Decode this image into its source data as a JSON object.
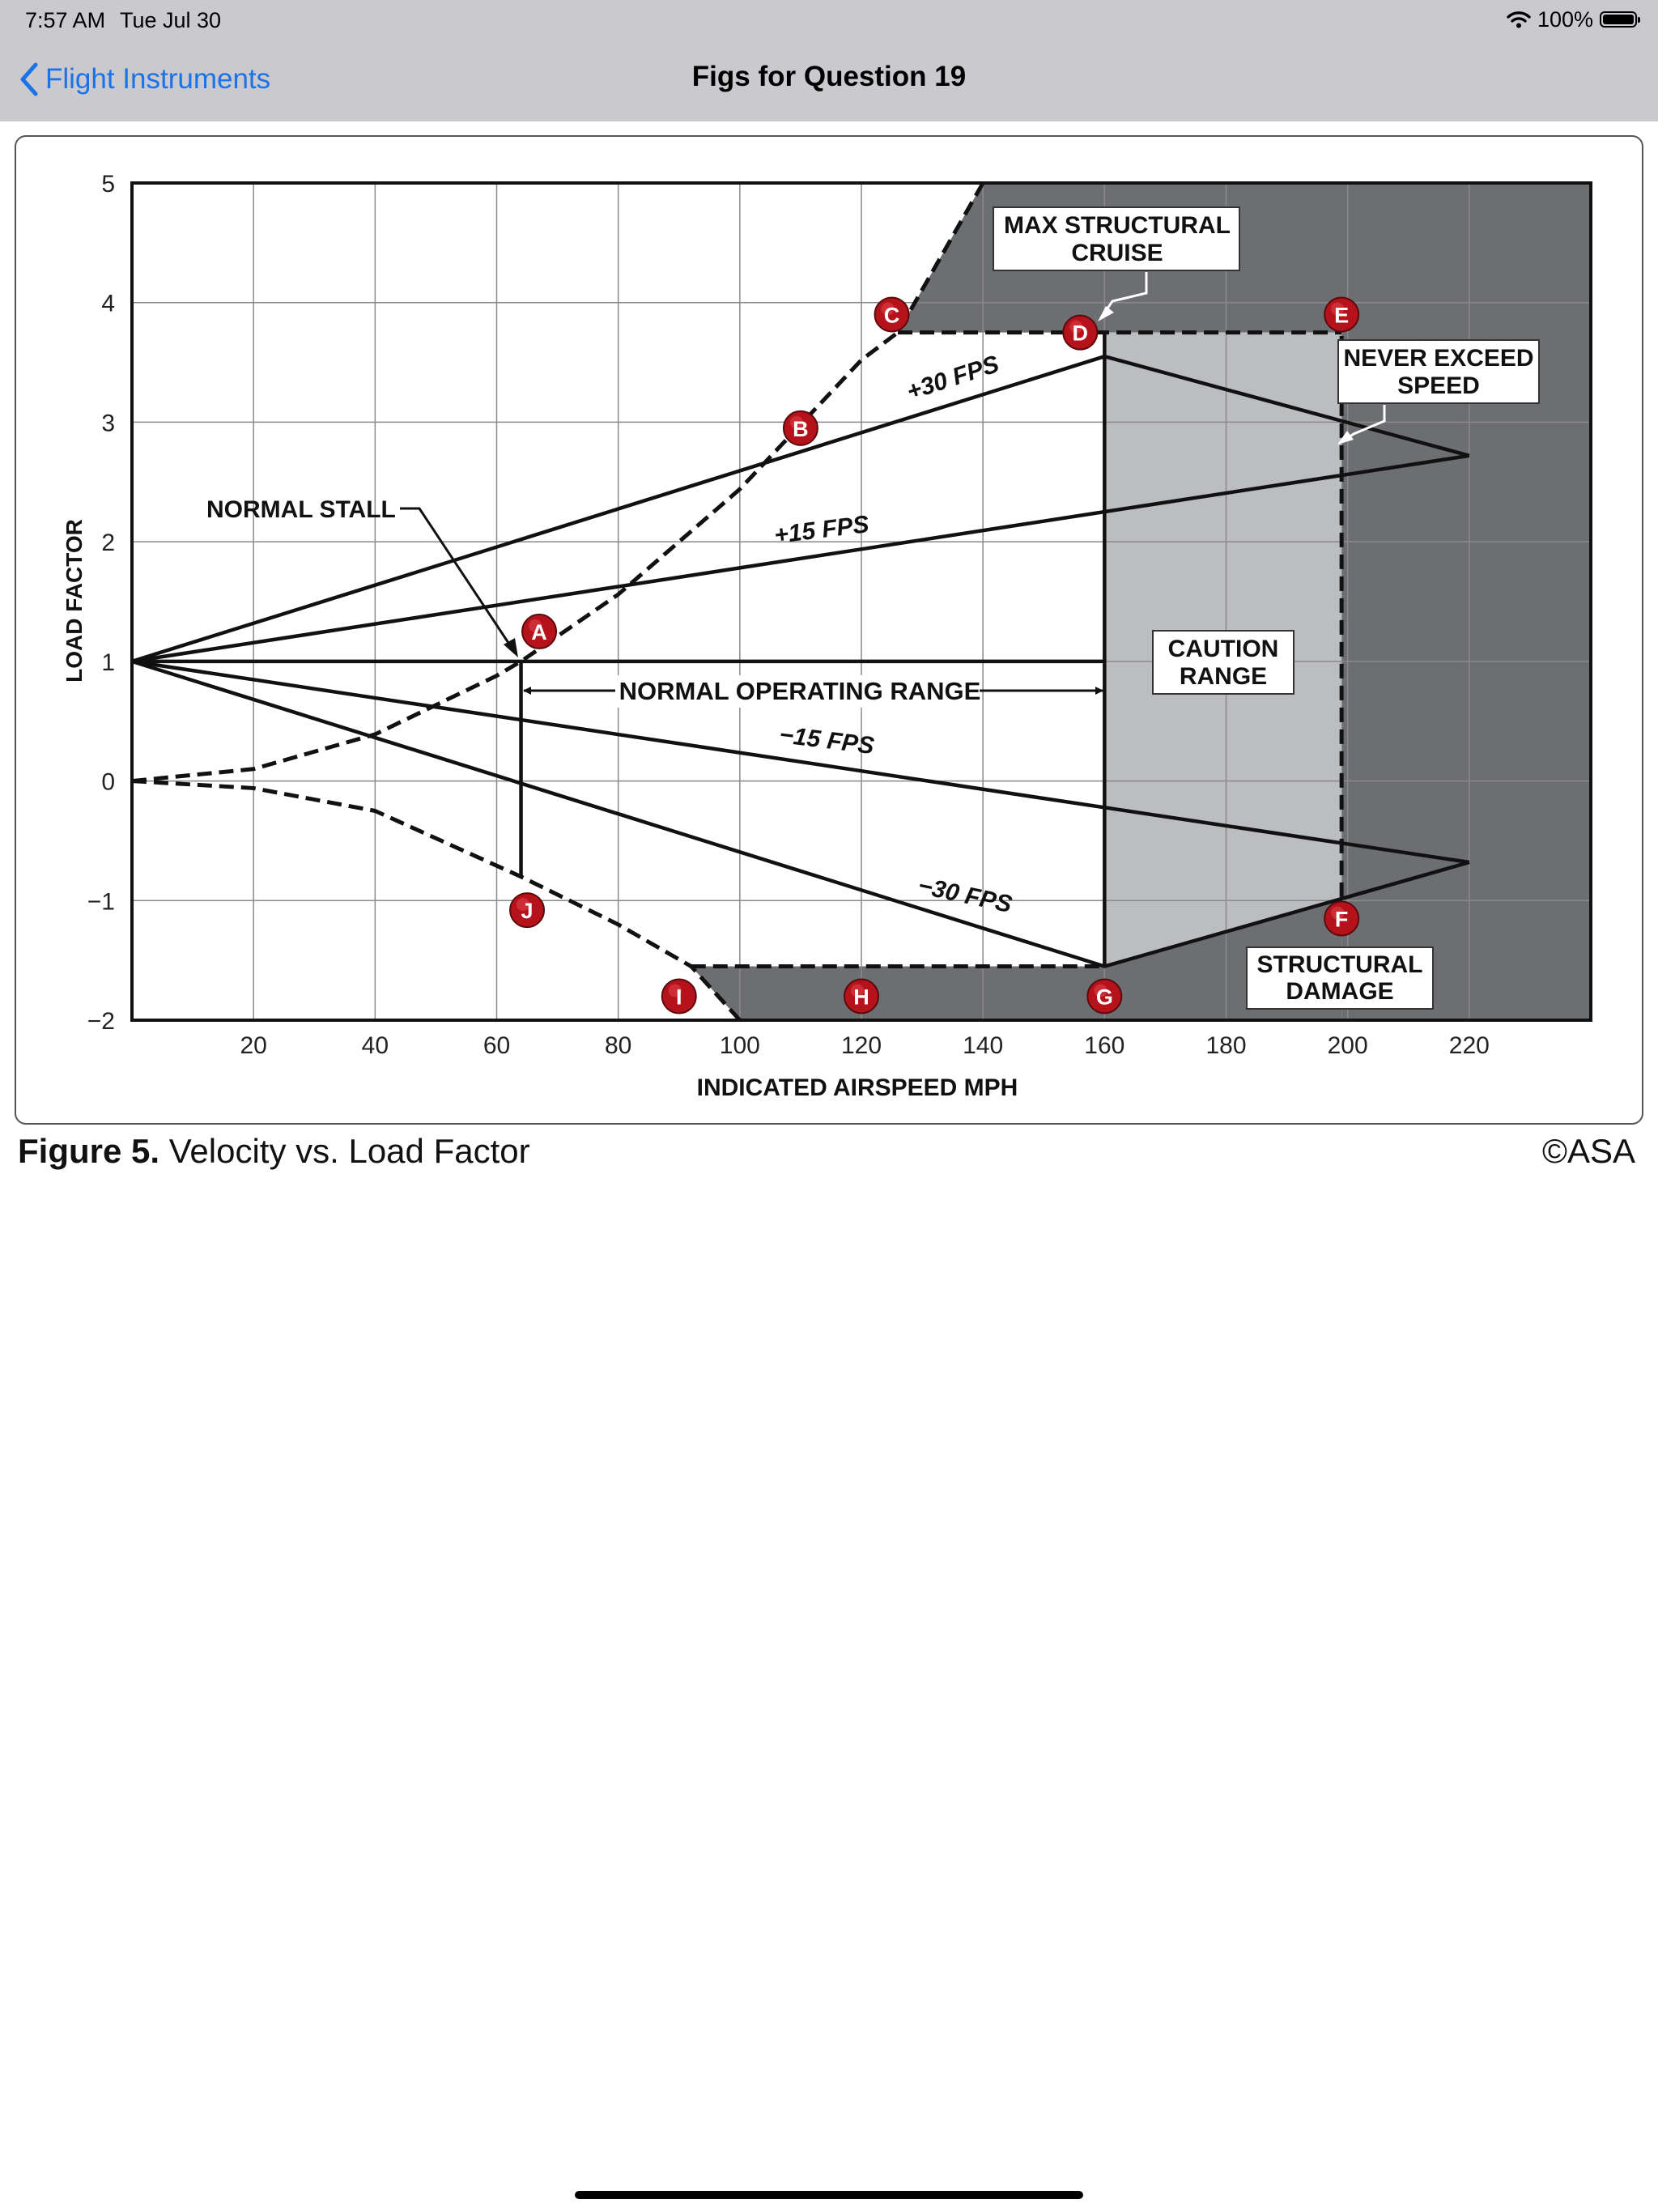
{
  "status_bar": {
    "time": "7:57 AM",
    "date": "Tue Jul 30",
    "battery": "100%"
  },
  "nav": {
    "back_label": "Flight Instruments",
    "title": "Figs for Question 19"
  },
  "caption": {
    "figure_label": "Figure 5.",
    "title": "Velocity vs. Load Factor",
    "copyright": "©ASA"
  },
  "colors": {
    "dark_region": "#6d6e71",
    "caution_region": "#bcbdc0",
    "marker": "#b5121b",
    "accent": "#1a73e8"
  },
  "chart_data": {
    "type": "line",
    "title": "Velocity vs. Load Factor",
    "xlabel": "INDICATED AIRSPEED MPH",
    "ylabel": "LOAD FACTOR",
    "xlim": [
      0,
      240
    ],
    "ylim": [
      -2,
      5
    ],
    "grid": true,
    "x_ticks": [
      20,
      40,
      60,
      80,
      100,
      120,
      140,
      160,
      180,
      200,
      220
    ],
    "y_ticks": [
      5,
      4,
      3,
      2,
      1,
      0,
      -1,
      -2
    ],
    "y_tick_labels": [
      "5",
      "4",
      "3",
      "2",
      "1",
      "0",
      "−1",
      "−2"
    ],
    "series": [
      {
        "name": "+30 FPS",
        "x": [
          0,
          160,
          220
        ],
        "y": [
          1,
          3.55,
          2.72
        ],
        "style": "solid"
      },
      {
        "name": "+15 FPS",
        "x": [
          0,
          220
        ],
        "y": [
          1,
          2.72
        ],
        "style": "solid"
      },
      {
        "name": "−15 FPS",
        "x": [
          0,
          220
        ],
        "y": [
          1,
          -0.68
        ],
        "style": "solid"
      },
      {
        "name": "−30 FPS",
        "x": [
          0,
          160,
          220
        ],
        "y": [
          1,
          -1.55,
          -0.68
        ],
        "style": "solid"
      },
      {
        "name": "Normal 1G",
        "x": [
          0,
          160
        ],
        "y": [
          1,
          1
        ],
        "style": "solid"
      },
      {
        "name": "Max structural cruise speed",
        "x": [
          160,
          160
        ],
        "y": [
          -1.55,
          3.75
        ],
        "style": "solid"
      },
      {
        "name": "Positive stall limit",
        "x": [
          0,
          20,
          40,
          60,
          64,
          80,
          100,
          120,
          126,
          140
        ],
        "y": [
          0,
          0.1,
          0.39,
          0.88,
          1.0,
          1.56,
          2.44,
          3.52,
          3.75,
          5.0
        ],
        "style": "dashed"
      },
      {
        "name": "Negative stall limit",
        "x": [
          0,
          20,
          40,
          64,
          80,
          92,
          100
        ],
        "y": [
          0,
          -0.06,
          -0.25,
          -0.8,
          -1.2,
          -1.55,
          -2.0
        ],
        "style": "dashed"
      },
      {
        "name": "Positive limit load",
        "x": [
          126,
          199
        ],
        "y": [
          3.75,
          3.75
        ],
        "style": "dashed"
      },
      {
        "name": "Negative limit load",
        "x": [
          92,
          160
        ],
        "y": [
          -1.55,
          -1.55
        ],
        "style": "dashed"
      },
      {
        "name": "Never exceed speed",
        "x": [
          199,
          199
        ],
        "y": [
          -0.97,
          3.75
        ],
        "style": "dashed"
      },
      {
        "name": "Stall speed line",
        "x": [
          64,
          64
        ],
        "y": [
          -0.8,
          1
        ],
        "style": "solid"
      }
    ],
    "points": [
      {
        "label": "A",
        "x": 67,
        "y": 1.25
      },
      {
        "label": "B",
        "x": 110,
        "y": 2.95
      },
      {
        "label": "C",
        "x": 125,
        "y": 3.9
      },
      {
        "label": "D",
        "x": 156,
        "y": 3.75
      },
      {
        "label": "E",
        "x": 199,
        "y": 3.9
      },
      {
        "label": "F",
        "x": 199,
        "y": -1.15
      },
      {
        "label": "G",
        "x": 160,
        "y": -1.8
      },
      {
        "label": "H",
        "x": 120,
        "y": -1.8
      },
      {
        "label": "I",
        "x": 90,
        "y": -1.8
      },
      {
        "label": "J",
        "x": 65,
        "y": -1.08
      }
    ],
    "annotations": {
      "max_structural_cruise": [
        "MAX STRUCTURAL",
        "CRUISE"
      ],
      "never_exceed_speed": [
        "NEVER EXCEED",
        "SPEED"
      ],
      "normal_stall": "NORMAL STALL",
      "normal_operating_range": "NORMAL OPERATING RANGE",
      "caution_range": [
        "CAUTION",
        "RANGE"
      ],
      "structural_damage": [
        "STRUCTURAL",
        "DAMAGE"
      ],
      "plus30": "+30 FPS",
      "plus15": "+15 FPS",
      "minus15": "−15 FPS",
      "minus30": "−30 FPS"
    }
  }
}
